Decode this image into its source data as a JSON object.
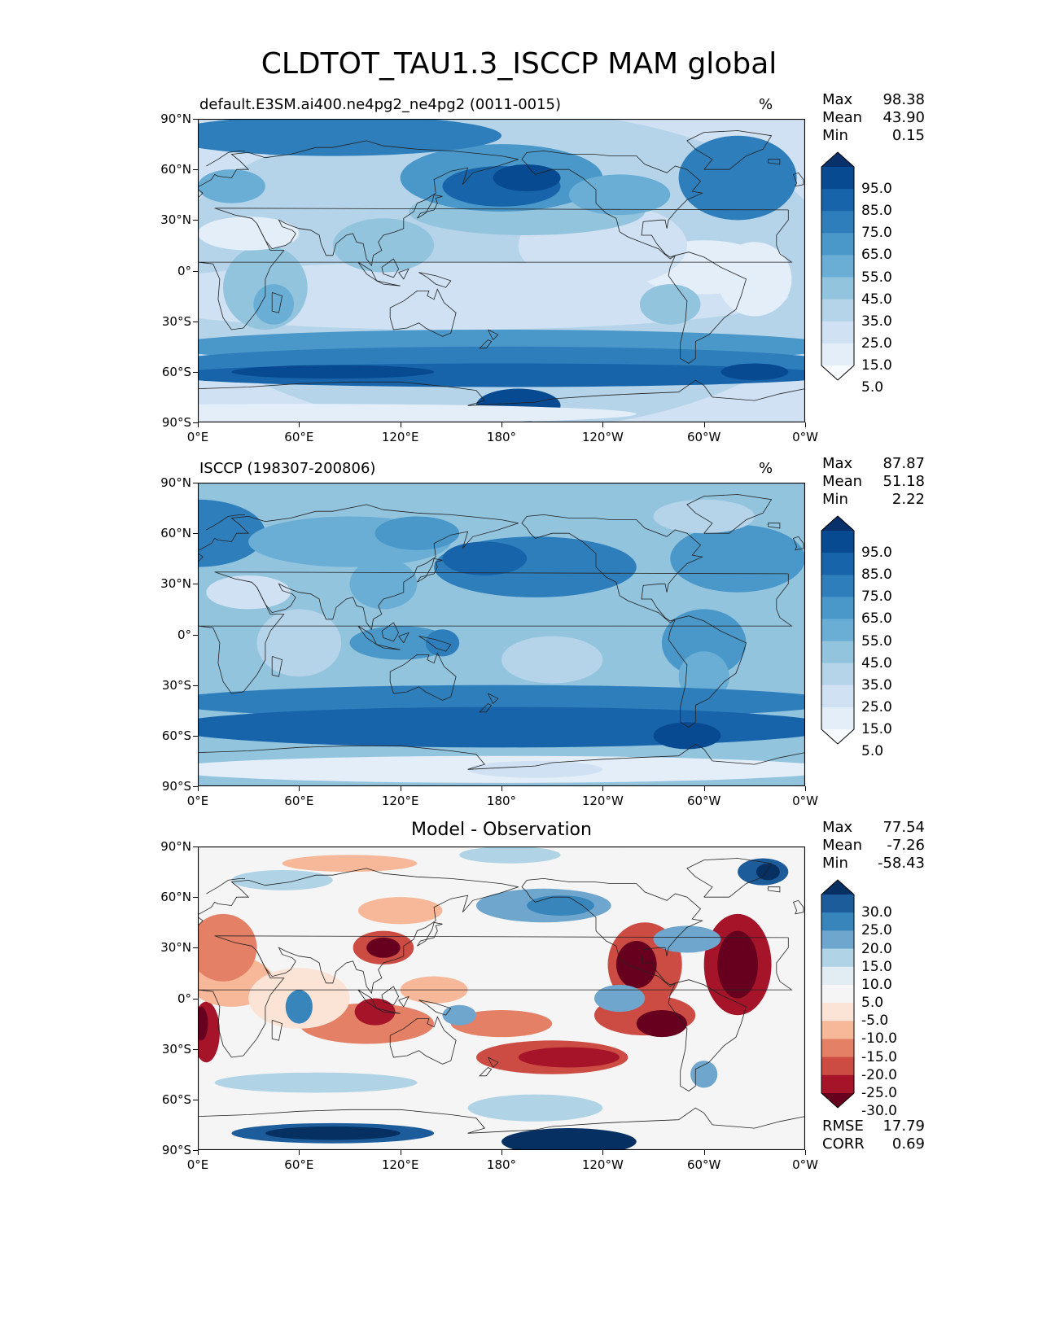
{
  "title": "CLDTOT_TAU1.3_ISCCP MAM global",
  "panels": [
    {
      "id": "test",
      "subtitle": "default.E3SM.ai400.ne4pg2_ne4pg2 (0011-0015)",
      "units": "%",
      "stats": [
        [
          "Max",
          "98.38"
        ],
        [
          "Mean",
          "43.90"
        ],
        [
          "Min",
          "0.15"
        ]
      ],
      "colorbar_levels": [
        "95.0",
        "85.0",
        "75.0",
        "65.0",
        "55.0",
        "45.0",
        "35.0",
        "25.0",
        "15.0",
        "5.0"
      ],
      "palette": "Blues"
    },
    {
      "id": "reference",
      "subtitle": "ISCCP (198307-200806)",
      "units": "%",
      "stats": [
        [
          "Max",
          "87.87"
        ],
        [
          "Mean",
          "51.18"
        ],
        [
          "Min",
          "2.22"
        ]
      ],
      "colorbar_levels": [
        "95.0",
        "85.0",
        "75.0",
        "65.0",
        "55.0",
        "45.0",
        "35.0",
        "25.0",
        "15.0",
        "5.0"
      ],
      "palette": "Blues"
    },
    {
      "id": "diff",
      "center_title": "Model - Observation",
      "stats": [
        [
          "Max",
          "77.54"
        ],
        [
          "Mean",
          "-7.26"
        ],
        [
          "Min",
          "-58.43"
        ]
      ],
      "colorbar_levels": [
        "30.0",
        "25.0",
        "20.0",
        "15.0",
        "10.0",
        "5.0",
        "-5.0",
        "-10.0",
        "-15.0",
        "-20.0",
        "-25.0",
        "-30.0"
      ],
      "palette": "RdBu",
      "metrics": [
        [
          "RMSE",
          "17.79"
        ],
        [
          "CORR",
          "0.69"
        ]
      ]
    }
  ],
  "axes": {
    "lat_ticks": [
      "90°N",
      "60°N",
      "30°N",
      "0°",
      "30°S",
      "60°S",
      "90°S"
    ],
    "lon_ticks": [
      "0°E",
      "60°E",
      "120°E",
      "180°",
      "120°W",
      "60°W",
      "0°W"
    ]
  },
  "colors": {
    "blues": [
      "#f7fbff",
      "#e3eef9",
      "#cfe1f2",
      "#b5d4e9",
      "#93c4de",
      "#6aaed6",
      "#4a98c9",
      "#2e7ebc",
      "#1764ab",
      "#084a91",
      "#08306b"
    ],
    "rdbu": [
      "#67001f",
      "#a51429",
      "#cc4c44",
      "#e48066",
      "#f7b799",
      "#fbe3d6",
      "#f5f5f5",
      "#e1edf3",
      "#b0d4e6",
      "#6fa6cd",
      "#3885bc",
      "#1c5c9b",
      "#053061"
    ]
  }
}
